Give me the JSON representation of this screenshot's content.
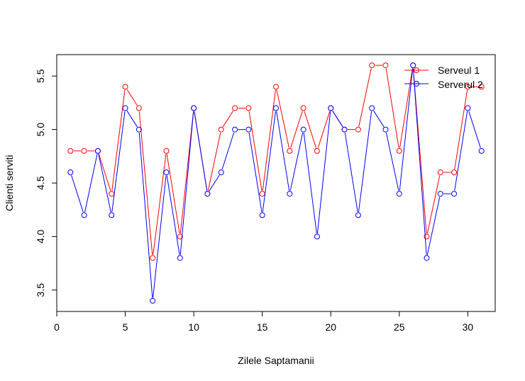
{
  "chart_data": {
    "type": "line",
    "xlabel": "Zilele Saptamanii",
    "ylabel": "Clienti serviti",
    "xlim": [
      0,
      32
    ],
    "ylim": [
      3.3,
      5.7
    ],
    "x_ticks": [
      0,
      5,
      10,
      15,
      20,
      25,
      30
    ],
    "y_ticks": [
      3.5,
      4.0,
      4.5,
      5.0,
      5.5
    ],
    "x_tick_labels": [
      "0",
      "5",
      "10",
      "15",
      "20",
      "25",
      "30"
    ],
    "y_tick_labels": [
      "3.5",
      "4.0",
      "4.5",
      "5.0",
      "5.5"
    ],
    "grid": false,
    "legend_position": "top-right",
    "x": [
      1,
      2,
      3,
      4,
      5,
      6,
      7,
      8,
      9,
      10,
      11,
      12,
      13,
      14,
      15,
      16,
      17,
      18,
      19,
      20,
      21,
      22,
      23,
      24,
      25,
      26,
      27,
      28,
      29,
      30,
      31
    ],
    "series": [
      {
        "name": "Serveul 1",
        "color": "#ff0000",
        "values": [
          4.8,
          4.8,
          4.8,
          4.4,
          5.4,
          5.2,
          3.8,
          4.8,
          4.0,
          5.2,
          4.4,
          5.0,
          5.2,
          5.2,
          4.4,
          5.4,
          4.8,
          5.2,
          4.8,
          5.2,
          5.0,
          5.0,
          5.6,
          5.6,
          4.8,
          5.6,
          4.0,
          4.6,
          4.6,
          5.4,
          5.4
        ]
      },
      {
        "name": "Serverul 2",
        "color": "#0000ff",
        "values": [
          4.6,
          4.2,
          4.8,
          4.2,
          5.2,
          5.0,
          3.4,
          4.6,
          3.8,
          5.2,
          4.4,
          4.6,
          5.0,
          5.0,
          4.2,
          5.2,
          4.4,
          5.0,
          4.0,
          5.2,
          5.0,
          4.2,
          5.2,
          5.0,
          4.4,
          5.6,
          3.8,
          4.4,
          4.4,
          5.2,
          4.8
        ]
      }
    ]
  }
}
